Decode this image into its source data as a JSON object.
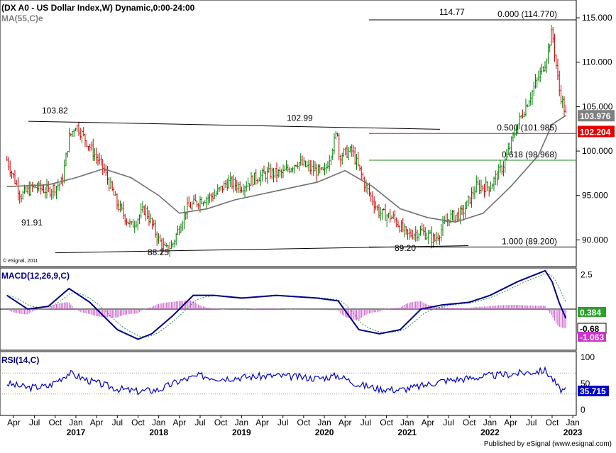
{
  "chart_data": [
    {
      "type": "candlestick",
      "title": "DX A0 - US Dollar Index,W) Dynamic,0:00-24:00",
      "prefix": "(",
      "ma_label": "MA(55,C)e",
      "copyright": "© eSignal, 2011",
      "y_axis": {
        "min": 87.0,
        "max": 117.0,
        "ticks": [
          115.0,
          110.0,
          105.0,
          100.0,
          95.0,
          90.0
        ],
        "tick_labels": [
          "115.000",
          "110.000",
          "105.000",
          "100.000",
          "95.000",
          "90.000"
        ]
      },
      "price_badges": [
        {
          "label": "103.976",
          "value": 103.976,
          "color": "#7f7f7f"
        },
        {
          "label": "102.204",
          "value": 102.204,
          "color": "#e60000"
        }
      ],
      "series": [
        {
          "name": "Price",
          "dates": [
            "2016-03",
            "2016-05",
            "2016-07",
            "2016-09",
            "2016-11",
            "2016-12",
            "2017-01",
            "2017-03",
            "2017-05",
            "2017-07",
            "2017-09",
            "2017-11",
            "2018-01",
            "2018-02",
            "2018-03",
            "2018-05",
            "2018-07",
            "2018-09",
            "2018-11",
            "2019-01",
            "2019-03",
            "2019-05",
            "2019-07",
            "2019-09",
            "2019-11",
            "2020-01",
            "2020-03",
            "2020-03",
            "2020-05",
            "2020-07",
            "2020-09",
            "2020-11",
            "2021-01",
            "2021-03",
            "2021-05",
            "2021-07",
            "2021-09",
            "2021-11",
            "2022-01",
            "2022-03",
            "2022-05",
            "2022-07",
            "2022-09",
            "2022-10",
            "2022-11",
            "2022-12"
          ],
          "values": [
            99.0,
            95.0,
            96.0,
            95.5,
            96.5,
            101.5,
            103.0,
            100.5,
            98.0,
            94.0,
            91.5,
            93.5,
            90.0,
            88.8,
            89.5,
            93.5,
            94.5,
            95.0,
            96.5,
            96.0,
            97.0,
            97.5,
            97.5,
            98.8,
            98.0,
            97.5,
            102.5,
            99.5,
            100.0,
            96.0,
            93.0,
            92.5,
            90.5,
            91.0,
            90.0,
            92.5,
            93.0,
            96.0,
            96.0,
            98.5,
            103.0,
            106.5,
            110.0,
            113.5,
            107.0,
            104.0
          ]
        },
        {
          "name": "MA(55,C)e",
          "dates": [
            "2016-03",
            "2016-09",
            "2017-01",
            "2017-05",
            "2017-09",
            "2018-01",
            "2018-04",
            "2018-08",
            "2018-12",
            "2019-06",
            "2019-12",
            "2020-04",
            "2020-08",
            "2020-12",
            "2021-04",
            "2021-08",
            "2021-12",
            "2022-04",
            "2022-08",
            "2022-10",
            "2022-12"
          ],
          "values": [
            96.0,
            96.2,
            97.0,
            98.0,
            97.0,
            95.0,
            93.0,
            93.5,
            94.5,
            95.5,
            96.5,
            97.8,
            96.0,
            93.5,
            92.5,
            92.0,
            93.0,
            96.0,
            99.5,
            103.0,
            104.0
          ]
        }
      ],
      "lines": [
        {
          "kind": "trendline",
          "labels": [
            "103.82",
            "102.99"
          ],
          "points": [
            [
              "2016-10",
              103.82
            ],
            [
              "2020-03",
              102.99
            ]
          ]
        },
        {
          "kind": "trendline",
          "labels": [
            "88.25",
            "89.20"
          ],
          "points": [
            [
              "2018-01",
              88.25
            ],
            [
              "2021-03",
              89.2
            ]
          ]
        },
        {
          "kind": "fibonacci",
          "label": "0.000 (114.770)",
          "value": 114.77,
          "color": "#000000"
        },
        {
          "kind": "fibonacci",
          "label": "0.500 (101.985)",
          "value": 101.985,
          "color": "#9b1f8e"
        },
        {
          "kind": "fibonacci",
          "label": "0.618 (98.968)",
          "value": 98.968,
          "color": "#1e8a1e"
        },
        {
          "kind": "fibonacci",
          "label": "1.000 (89.200)",
          "value": 89.2,
          "color": "#000000"
        }
      ],
      "annotations": [
        "114.77",
        "103.82",
        "102.99",
        "91.91",
        "88.25",
        "89.20"
      ]
    },
    {
      "type": "line",
      "title": "MACD(12,26,9,C)",
      "y_axis": {
        "min": -3.0,
        "max": 3.0,
        "ticks": [
          2.5
        ],
        "tick_labels": [
          "2.5"
        ]
      },
      "value_badges": [
        {
          "label": "0.384",
          "color": "#2ca02c"
        },
        {
          "label": "-0.68",
          "color": "#ffffff"
        },
        {
          "label": "-1.063",
          "color": "#cc33cc"
        }
      ],
      "series": [
        {
          "name": "MACD",
          "dates": [
            "2016-03",
            "2016-06",
            "2016-09",
            "2016-12",
            "2017-03",
            "2017-07",
            "2017-10",
            "2017-12",
            "2018-03",
            "2018-06",
            "2018-09",
            "2019-01",
            "2019-06",
            "2019-12",
            "2020-03",
            "2020-06",
            "2020-09",
            "2020-12",
            "2021-03",
            "2021-06",
            "2021-10",
            "2022-01",
            "2022-05",
            "2022-08",
            "2022-09",
            "2022-10",
            "2022-11",
            "2022-12"
          ],
          "values": [
            1.0,
            0.0,
            0.2,
            1.5,
            0.5,
            -1.5,
            -2.2,
            -1.8,
            -0.5,
            1.0,
            1.0,
            0.8,
            1.0,
            0.8,
            0.6,
            -1.5,
            -1.8,
            -1.5,
            0.0,
            0.3,
            0.5,
            1.0,
            2.0,
            2.6,
            2.8,
            2.0,
            0.5,
            -0.68
          ]
        }
      ]
    },
    {
      "type": "line",
      "title": "RSI(14,C)",
      "y_axis": {
        "min": 0,
        "max": 100,
        "ticks": [
          100,
          50,
          0
        ],
        "tick_labels": [
          "100",
          "50",
          "0"
        ]
      },
      "value_badges": [
        {
          "label": "35.715",
          "color": "#0000cc"
        }
      ],
      "series": [
        {
          "name": "RSI",
          "dates": [
            "2016-03",
            "2016-06",
            "2016-09",
            "2016-12",
            "2017-03",
            "2017-07",
            "2017-10",
            "2018-01",
            "2018-04",
            "2018-07",
            "2018-10",
            "2019-01",
            "2019-06",
            "2019-12",
            "2020-03",
            "2020-06",
            "2020-09",
            "2020-12",
            "2021-03",
            "2021-06",
            "2021-10",
            "2022-01",
            "2022-04",
            "2022-07",
            "2022-09",
            "2022-10",
            "2022-11",
            "2022-12"
          ],
          "values": [
            50,
            42,
            45,
            70,
            55,
            40,
            35,
            38,
            55,
            65,
            60,
            62,
            65,
            60,
            65,
            48,
            40,
            38,
            45,
            55,
            60,
            65,
            68,
            72,
            75,
            60,
            40,
            35.7
          ]
        }
      ]
    }
  ],
  "x_axis": {
    "months": [
      "Apr",
      "Jul",
      "Oct",
      "Jan",
      "Apr",
      "Jul",
      "Oct",
      "Jan",
      "Apr",
      "Jul",
      "Oct",
      "Jan",
      "Apr",
      "Jul",
      "Oct",
      "Jan",
      "Apr",
      "Jul",
      "Oct",
      "Jan",
      "Apr",
      "Jul",
      "Oct",
      "Jan",
      "Apr",
      "Jul",
      "Oct",
      "Jan"
    ],
    "years": [
      "2017",
      "2018",
      "2019",
      "2020",
      "2021",
      "2022",
      "2023"
    ]
  },
  "footer": "Published by eSignal (www.esignal.com)"
}
